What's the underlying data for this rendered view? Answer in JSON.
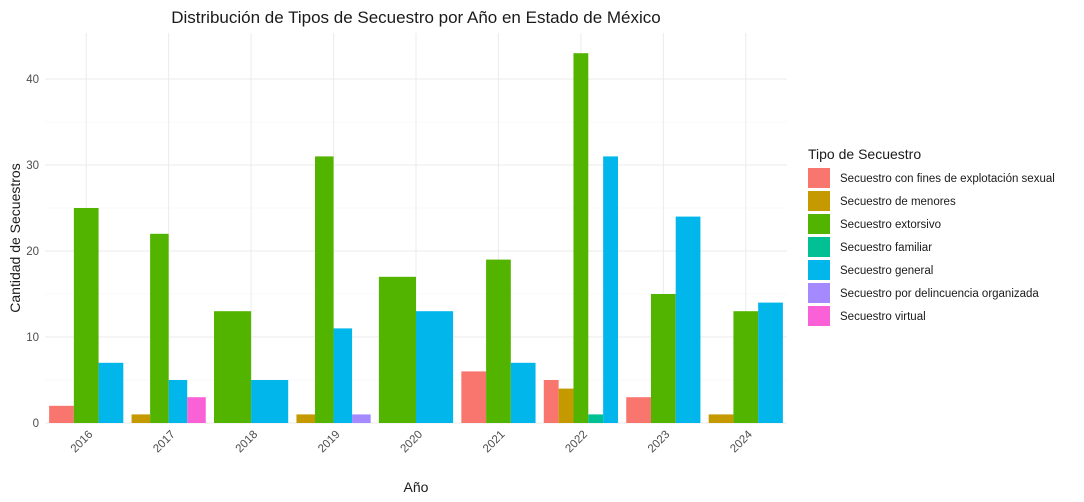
{
  "chart_data": {
    "type": "bar",
    "title": "Distribución de Tipos de Secuestro por Año en Estado de México",
    "xlabel": "Año",
    "ylabel": "Cantidad de Secuestros",
    "ylim": [
      0,
      45
    ],
    "yticks": [
      0,
      10,
      20,
      30,
      40
    ],
    "grid": true,
    "legend": {
      "title": "Tipo de Secuestro",
      "position": "right"
    },
    "categories": [
      "2016",
      "2017",
      "2018",
      "2019",
      "2020",
      "2021",
      "2022",
      "2023",
      "2024"
    ],
    "series": [
      {
        "name": "Secuestro con fines de explotación sexual",
        "color": "#F8766D"
      },
      {
        "name": "Secuestro de menores",
        "color": "#C49A00"
      },
      {
        "name": "Secuestro extorsivo",
        "color": "#53B400"
      },
      {
        "name": "Secuestro familiar",
        "color": "#00C094"
      },
      {
        "name": "Secuestro general",
        "color": "#00B6EB"
      },
      {
        "name": "Secuestro por delincuencia organizada",
        "color": "#A58AFF"
      },
      {
        "name": "Secuestro virtual",
        "color": "#FB61D7"
      }
    ],
    "groups": [
      {
        "category": "2016",
        "bars": [
          {
            "series": 0,
            "value": 2
          },
          {
            "series": 2,
            "value": 25
          },
          {
            "series": 4,
            "value": 7
          }
        ]
      },
      {
        "category": "2017",
        "bars": [
          {
            "series": 1,
            "value": 1
          },
          {
            "series": 2,
            "value": 22
          },
          {
            "series": 4,
            "value": 5
          },
          {
            "series": 6,
            "value": 3
          }
        ]
      },
      {
        "category": "2018",
        "bars": [
          {
            "series": 2,
            "value": 13
          },
          {
            "series": 4,
            "value": 5
          }
        ]
      },
      {
        "category": "2019",
        "bars": [
          {
            "series": 1,
            "value": 1
          },
          {
            "series": 2,
            "value": 31
          },
          {
            "series": 4,
            "value": 11
          },
          {
            "series": 5,
            "value": 1
          }
        ]
      },
      {
        "category": "2020",
        "bars": [
          {
            "series": 2,
            "value": 17
          },
          {
            "series": 4,
            "value": 13
          }
        ]
      },
      {
        "category": "2021",
        "bars": [
          {
            "series": 0,
            "value": 6
          },
          {
            "series": 2,
            "value": 19
          },
          {
            "series": 4,
            "value": 7
          }
        ]
      },
      {
        "category": "2022",
        "bars": [
          {
            "series": 0,
            "value": 5
          },
          {
            "series": 1,
            "value": 4
          },
          {
            "series": 2,
            "value": 43
          },
          {
            "series": 3,
            "value": 1
          },
          {
            "series": 4,
            "value": 31
          }
        ]
      },
      {
        "category": "2023",
        "bars": [
          {
            "series": 0,
            "value": 3
          },
          {
            "series": 2,
            "value": 15
          },
          {
            "series": 4,
            "value": 24
          }
        ]
      },
      {
        "category": "2024",
        "bars": [
          {
            "series": 1,
            "value": 1
          },
          {
            "series": 2,
            "value": 13
          },
          {
            "series": 4,
            "value": 14
          }
        ]
      }
    ]
  }
}
